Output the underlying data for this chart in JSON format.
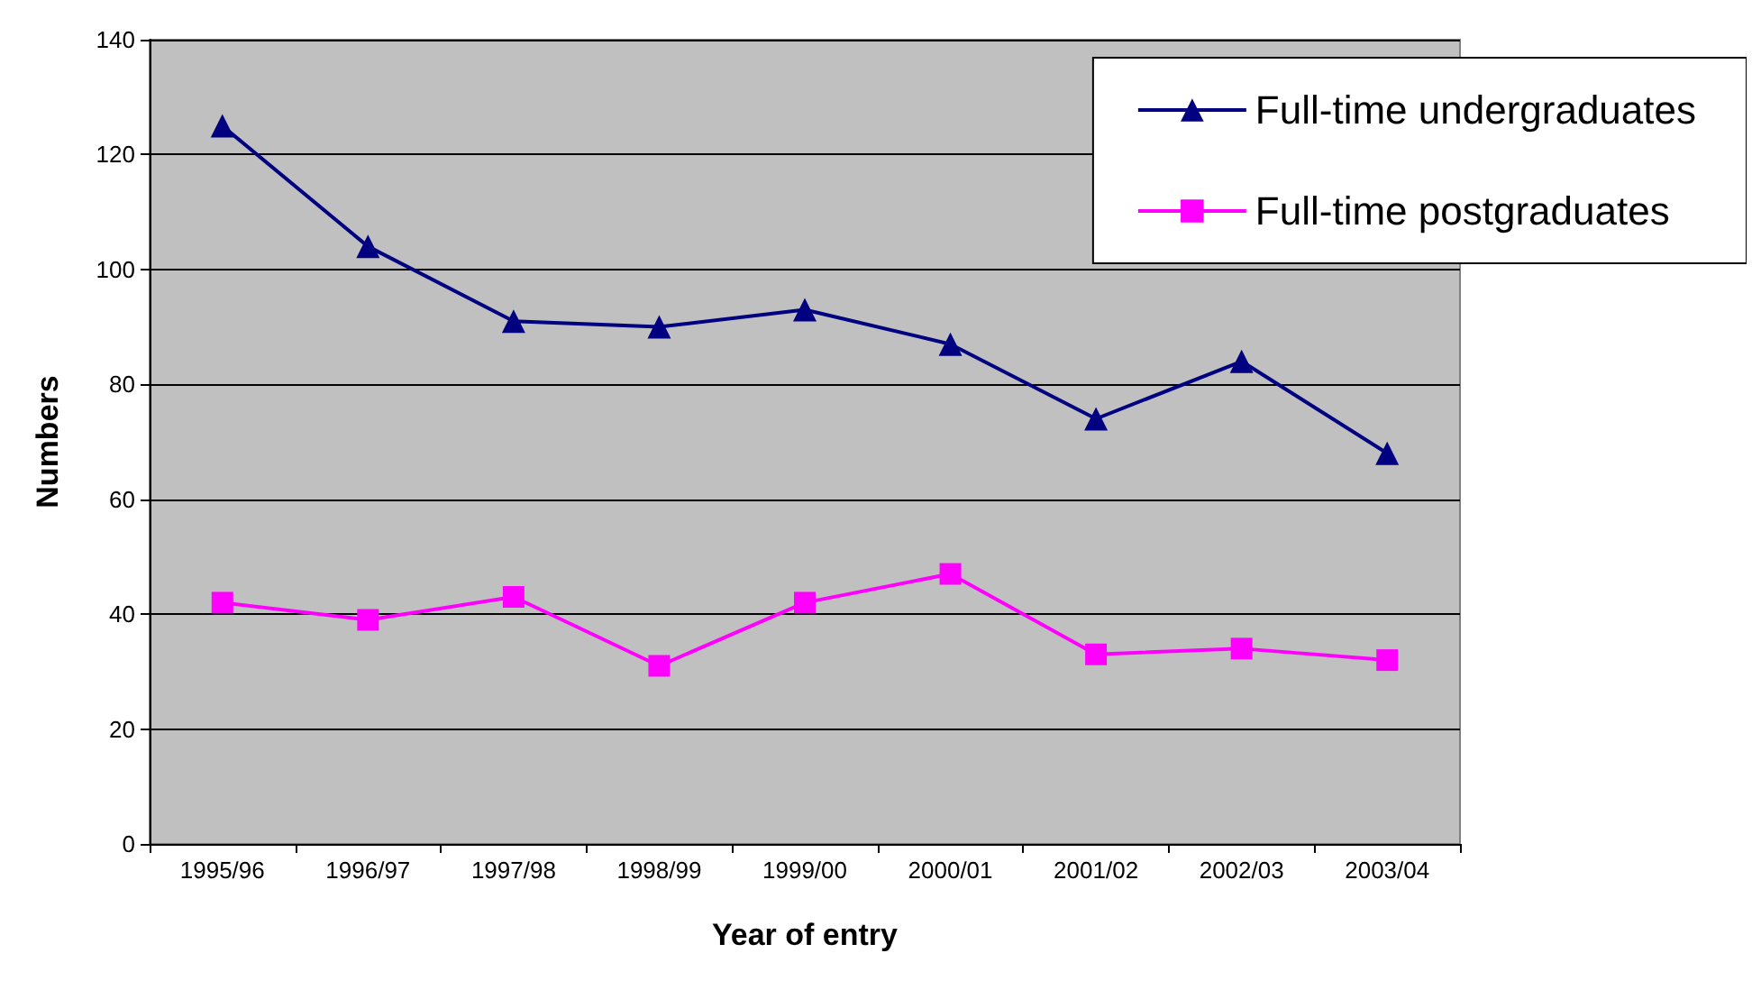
{
  "chart_data": {
    "type": "line",
    "xlabel": "Year of entry",
    "ylabel": "Numbers",
    "categories": [
      "1995/96",
      "1996/97",
      "1997/98",
      "1998/99",
      "1999/00",
      "2000/01",
      "2001/02",
      "2002/03",
      "2003/04"
    ],
    "series": [
      {
        "name": "Full-time undergraduates",
        "color": "#000080",
        "marker": "triangle",
        "values": [
          125,
          104,
          91,
          90,
          93,
          87,
          74,
          84,
          68
        ]
      },
      {
        "name": "Full-time postgraduates",
        "color": "#ff00ff",
        "marker": "square",
        "values": [
          42,
          39,
          43,
          31,
          42,
          47,
          33,
          34,
          32
        ]
      }
    ],
    "ylim": [
      0,
      140
    ],
    "yticks": [
      0,
      20,
      40,
      60,
      80,
      100,
      120,
      140
    ],
    "grid": "y",
    "legend": "top right"
  }
}
